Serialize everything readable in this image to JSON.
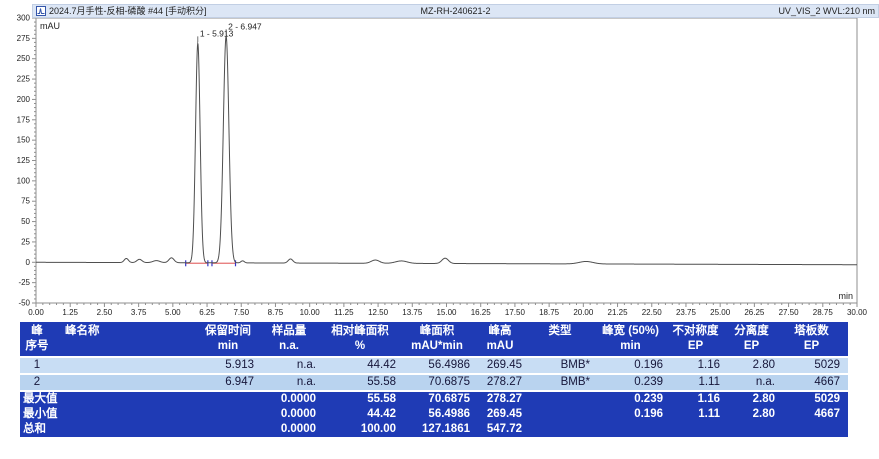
{
  "chart": {
    "titlebar": {
      "left": "2024.7月手性-反相-磷酸 #44 [手动积分]",
      "center": "MZ-RH-240621-2",
      "right": "UV_VIS_2 WVL:210 nm"
    },
    "y_unit_label": "mAU",
    "x_unit_label": "min"
  },
  "chart_data": {
    "type": "line",
    "title": "2024.7月手性-反相-磷酸 #44 [手动积分]",
    "xlabel": "min",
    "ylabel": "mAU",
    "xlim": [
      0,
      30
    ],
    "ylim": [
      -50,
      300
    ],
    "x_major_tick_step": 1.25,
    "x_minor_tick_step": 0.25,
    "y_major_tick_step": 25,
    "y_minor_tick_step": 5,
    "grid": false,
    "baseline_drift_mau_per_min": -0.1,
    "peaks": [
      {
        "no": 1,
        "label": "1 - 5.913",
        "retention_min": 5.913,
        "height_mau": 269.45,
        "width50_min": 0.196
      },
      {
        "no": 2,
        "label": "2 - 6.947",
        "retention_min": 6.947,
        "height_mau": 278.27,
        "width50_min": 0.239
      }
    ],
    "minor_features": [
      {
        "center": 3.3,
        "height": 5.0,
        "width50": 0.18
      },
      {
        "center": 3.78,
        "height": 4.0,
        "width50": 0.22
      },
      {
        "center": 4.4,
        "height": 2.5,
        "width50": 0.3
      },
      {
        "center": 4.95,
        "height": 6.0,
        "width50": 0.22
      },
      {
        "center": 7.55,
        "height": 2.5,
        "width50": 0.15
      },
      {
        "center": 9.3,
        "height": 5.0,
        "width50": 0.2
      },
      {
        "center": 12.4,
        "height": 4.0,
        "width50": 0.35
      },
      {
        "center": 13.35,
        "height": 3.0,
        "width50": 0.5
      },
      {
        "center": 14.95,
        "height": 6.5,
        "width50": 0.28
      },
      {
        "center": 20.1,
        "height": 3.0,
        "width50": 0.6
      }
    ],
    "integration_segments": [
      {
        "from_min": 5.47,
        "to_min": 6.28
      },
      {
        "from_min": 6.43,
        "to_min": 7.29
      }
    ],
    "colors": {
      "trace": "#4f4f4f",
      "frame": "#8f8f8f",
      "tick_text": "#222222",
      "integration_baseline": "#e57070",
      "integration_marker": "#3636c8"
    }
  },
  "table": {
    "accent_color": "#1f3bb5",
    "columns": [
      {
        "h1": "峰",
        "h2": "序号"
      },
      {
        "h1": "峰名称",
        "h2": ""
      },
      {
        "h1": "保留时间",
        "h2": "min"
      },
      {
        "h1": "样品量",
        "h2": "n.a."
      },
      {
        "h1": "相对峰面积",
        "h2": "%"
      },
      {
        "h1": "峰面积",
        "h2": "mAU*min"
      },
      {
        "h1": "峰高",
        "h2": "mAU"
      },
      {
        "h1": "类型",
        "h2": ""
      },
      {
        "h1": "峰宽 (50%)",
        "h2": "min"
      },
      {
        "h1": "不对称度",
        "h2": "EP"
      },
      {
        "h1": "分离度",
        "h2": "EP"
      },
      {
        "h1": "塔板数",
        "h2": "EP"
      }
    ],
    "rows": [
      {
        "style": "light1",
        "cells": [
          "1",
          "",
          "5.913",
          "n.a.",
          "44.42",
          "56.4986",
          "269.45",
          "BMB*",
          "0.196",
          "1.16",
          "2.80",
          "5029"
        ]
      },
      {
        "style": "light2",
        "cells": [
          "2",
          "",
          "6.947",
          "n.a.",
          "55.58",
          "70.6875",
          "278.27",
          "BMB*",
          "0.239",
          "1.11",
          "n.a.",
          "4667"
        ]
      },
      {
        "style": "dark",
        "cells": [
          "最大值",
          "",
          "",
          "0.0000",
          "55.58",
          "70.6875",
          "278.27",
          "",
          "0.239",
          "1.16",
          "2.80",
          "5029"
        ]
      },
      {
        "style": "dark",
        "cells": [
          "最小值",
          "",
          "",
          "0.0000",
          "44.42",
          "56.4986",
          "269.45",
          "",
          "0.196",
          "1.11",
          "2.80",
          "4667"
        ]
      },
      {
        "style": "dark",
        "cells": [
          "总和",
          "",
          "",
          "0.0000",
          "100.00",
          "127.1861",
          "547.72",
          "",
          "",
          "",
          "",
          ""
        ]
      }
    ]
  }
}
